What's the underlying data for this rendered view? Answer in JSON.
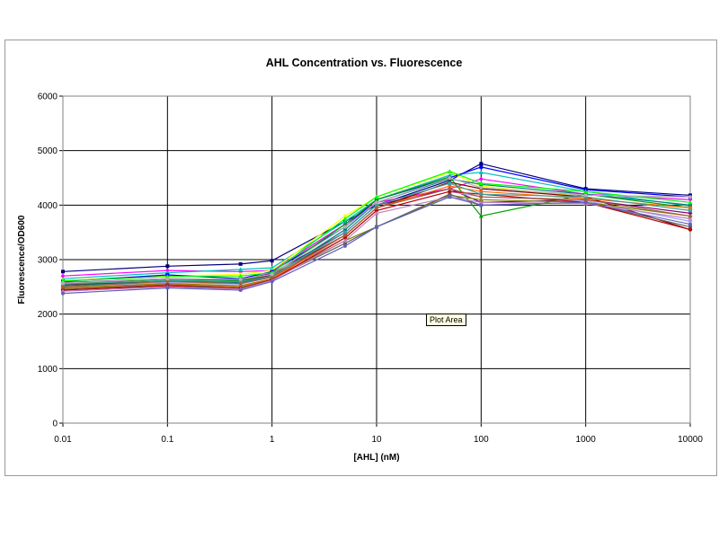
{
  "tooltip": "Plot Area",
  "chart_data": {
    "type": "line",
    "title": "AHL Concentration vs. Fluorescence",
    "xlabel": "[AHL] (nM)",
    "ylabel": "Fluorescence/OD600",
    "x_scale": "log",
    "xlim": [
      0.01,
      10000
    ],
    "ylim": [
      0,
      6000
    ],
    "x_ticks": [
      "0.01",
      "0.1",
      "1",
      "10",
      "100",
      "1000",
      "10000"
    ],
    "y_ticks": [
      "0",
      "1000",
      "2000",
      "3000",
      "4000",
      "5000",
      "6000"
    ],
    "grid": true,
    "legend": "none",
    "x": [
      0.01,
      0.1,
      0.5,
      1,
      5,
      10,
      50,
      100,
      1000,
      10000
    ],
    "series": [
      {
        "color": "#000080",
        "values": [
          2780,
          2880,
          2920,
          2980,
          3700,
          4000,
          4450,
          4760,
          4300,
          4180
        ]
      },
      {
        "color": "#ff00ff",
        "values": [
          2700,
          2800,
          2780,
          2800,
          3650,
          4050,
          4300,
          4480,
          4200,
          4100
        ]
      },
      {
        "color": "#00c0c0",
        "values": [
          2650,
          2760,
          2820,
          2850,
          3700,
          4100,
          4550,
          4600,
          4250,
          3980
        ]
      },
      {
        "color": "#ffff00",
        "values": [
          2620,
          2700,
          2730,
          2800,
          3800,
          4150,
          4600,
          4350,
          4150,
          3900
        ]
      },
      {
        "color": "#0000ff",
        "values": [
          2600,
          2720,
          2650,
          2780,
          3600,
          4100,
          4500,
          4700,
          4280,
          4150
        ]
      },
      {
        "color": "#800080",
        "values": [
          2580,
          2650,
          2630,
          2750,
          3500,
          4000,
          4300,
          4050,
          4100,
          3850
        ]
      },
      {
        "color": "#00a000",
        "values": [
          2560,
          2640,
          2620,
          2720,
          3650,
          4100,
          4520,
          3800,
          4200,
          3950
        ]
      },
      {
        "color": "#800000",
        "values": [
          2540,
          2600,
          2600,
          2720,
          3450,
          3950,
          4420,
          4300,
          4150,
          3550
        ]
      },
      {
        "color": "#008080",
        "values": [
          2520,
          2600,
          2580,
          2690,
          3550,
          4050,
          4480,
          4380,
          4200,
          4000
        ]
      },
      {
        "color": "#a0a0ff",
        "values": [
          2500,
          2580,
          2550,
          2680,
          3400,
          3900,
          4250,
          4150,
          4080,
          3700
        ]
      },
      {
        "color": "#808000",
        "values": [
          2480,
          2560,
          2520,
          2650,
          3350,
          3600,
          4180,
          4100,
          4050,
          3800
        ]
      },
      {
        "color": "#ff6600",
        "values": [
          2460,
          2550,
          2500,
          2650,
          3450,
          3950,
          4350,
          4250,
          4120,
          3950
        ]
      },
      {
        "color": "#606060",
        "values": [
          2450,
          2540,
          2480,
          2640,
          3300,
          3600,
          4200,
          4000,
          4050,
          3600
        ]
      },
      {
        "color": "#c00000",
        "values": [
          2440,
          2520,
          2470,
          2630,
          3400,
          3900,
          4250,
          4200,
          4050,
          3550
        ]
      },
      {
        "color": "#c080c0",
        "values": [
          2420,
          2500,
          2460,
          2620,
          3350,
          3850,
          4150,
          4050,
          4030,
          3750
        ]
      },
      {
        "color": "#6060c0",
        "values": [
          2380,
          2480,
          2440,
          2600,
          3250,
          3600,
          4150,
          4000,
          4050,
          3650
        ]
      },
      {
        "color": "#40a0a0",
        "values": [
          2550,
          2620,
          2600,
          2700,
          3500,
          4000,
          4400,
          4200,
          4150,
          3900
        ]
      },
      {
        "color": "#a06040",
        "values": [
          2500,
          2600,
          2560,
          2680,
          3450,
          3950,
          4300,
          4150,
          4100,
          3800
        ]
      },
      {
        "color": "#00ff00",
        "values": [
          2610,
          2690,
          2700,
          2760,
          3750,
          4150,
          4620,
          4400,
          4250,
          4050
        ]
      },
      {
        "color": "#b0b0b0",
        "values": [
          2570,
          2650,
          2640,
          2730,
          3600,
          4050,
          4500,
          4320,
          4180,
          4150
        ]
      }
    ]
  }
}
